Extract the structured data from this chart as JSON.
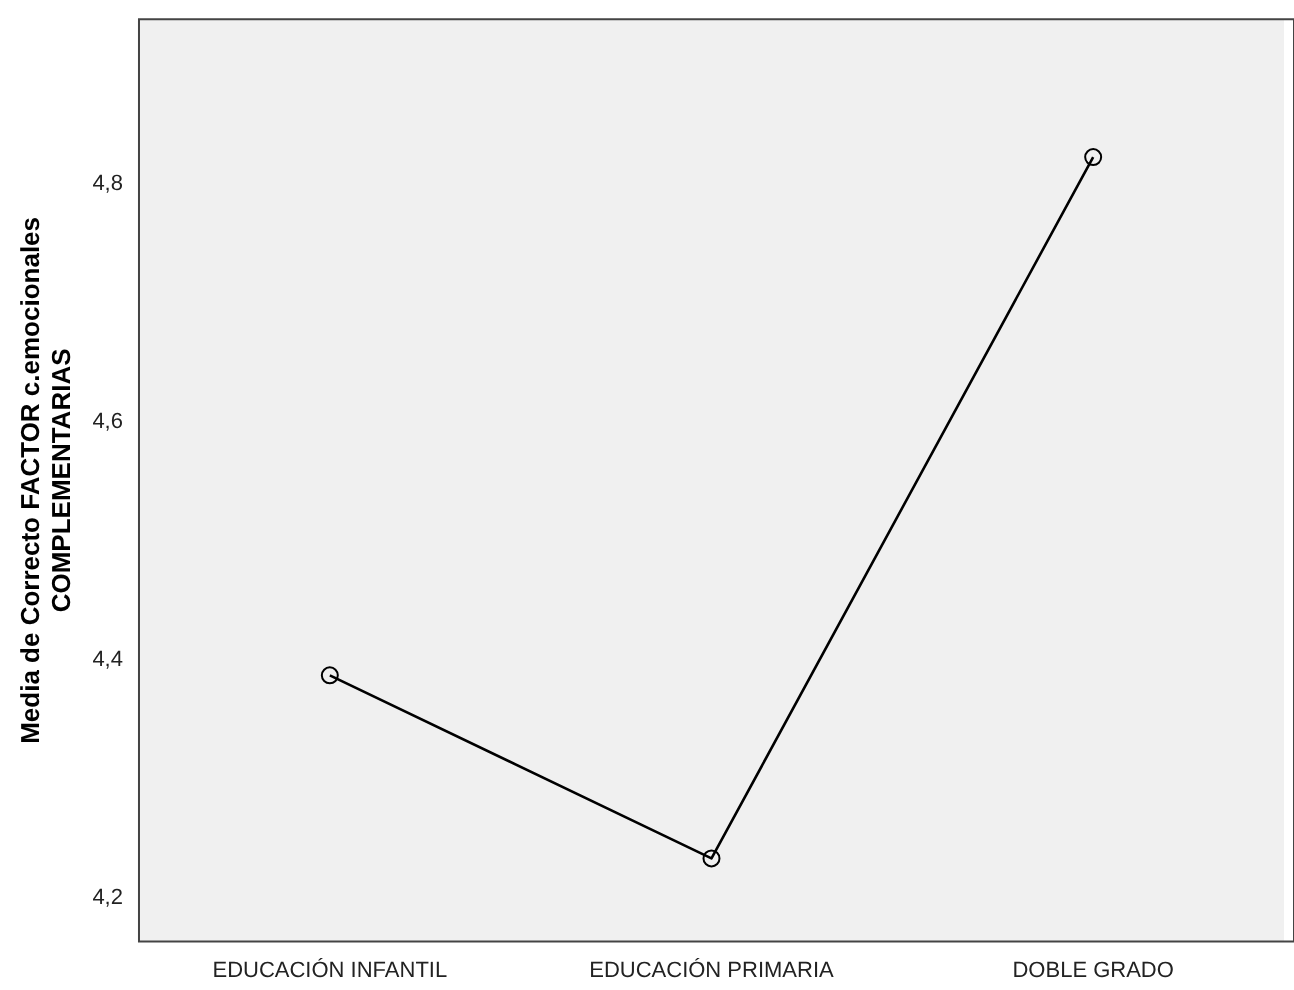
{
  "chart_data": {
    "type": "line",
    "ylabel": "Media de Correcto FACTOR c.emocionales\nCOMPLEMENTARIAS",
    "categories": [
      "EDUCACIÓN INFANTIL",
      "EDUCACIÓN PRIMARIA",
      "DOBLE GRADO"
    ],
    "series": [
      {
        "color": "#000000",
        "values": [
          4.387,
          4.233,
          4.823
        ]
      }
    ],
    "ylim": [
      4.163,
      4.939
    ],
    "yticks": [
      {
        "value": 4.2,
        "label": "4,2"
      },
      {
        "value": 4.4,
        "label": "4,4"
      },
      {
        "value": 4.6,
        "label": "4,6"
      },
      {
        "value": 4.8,
        "label": "4,8"
      }
    ],
    "marker": "circle",
    "line_style": "solid",
    "grid": false,
    "legend": false
  }
}
